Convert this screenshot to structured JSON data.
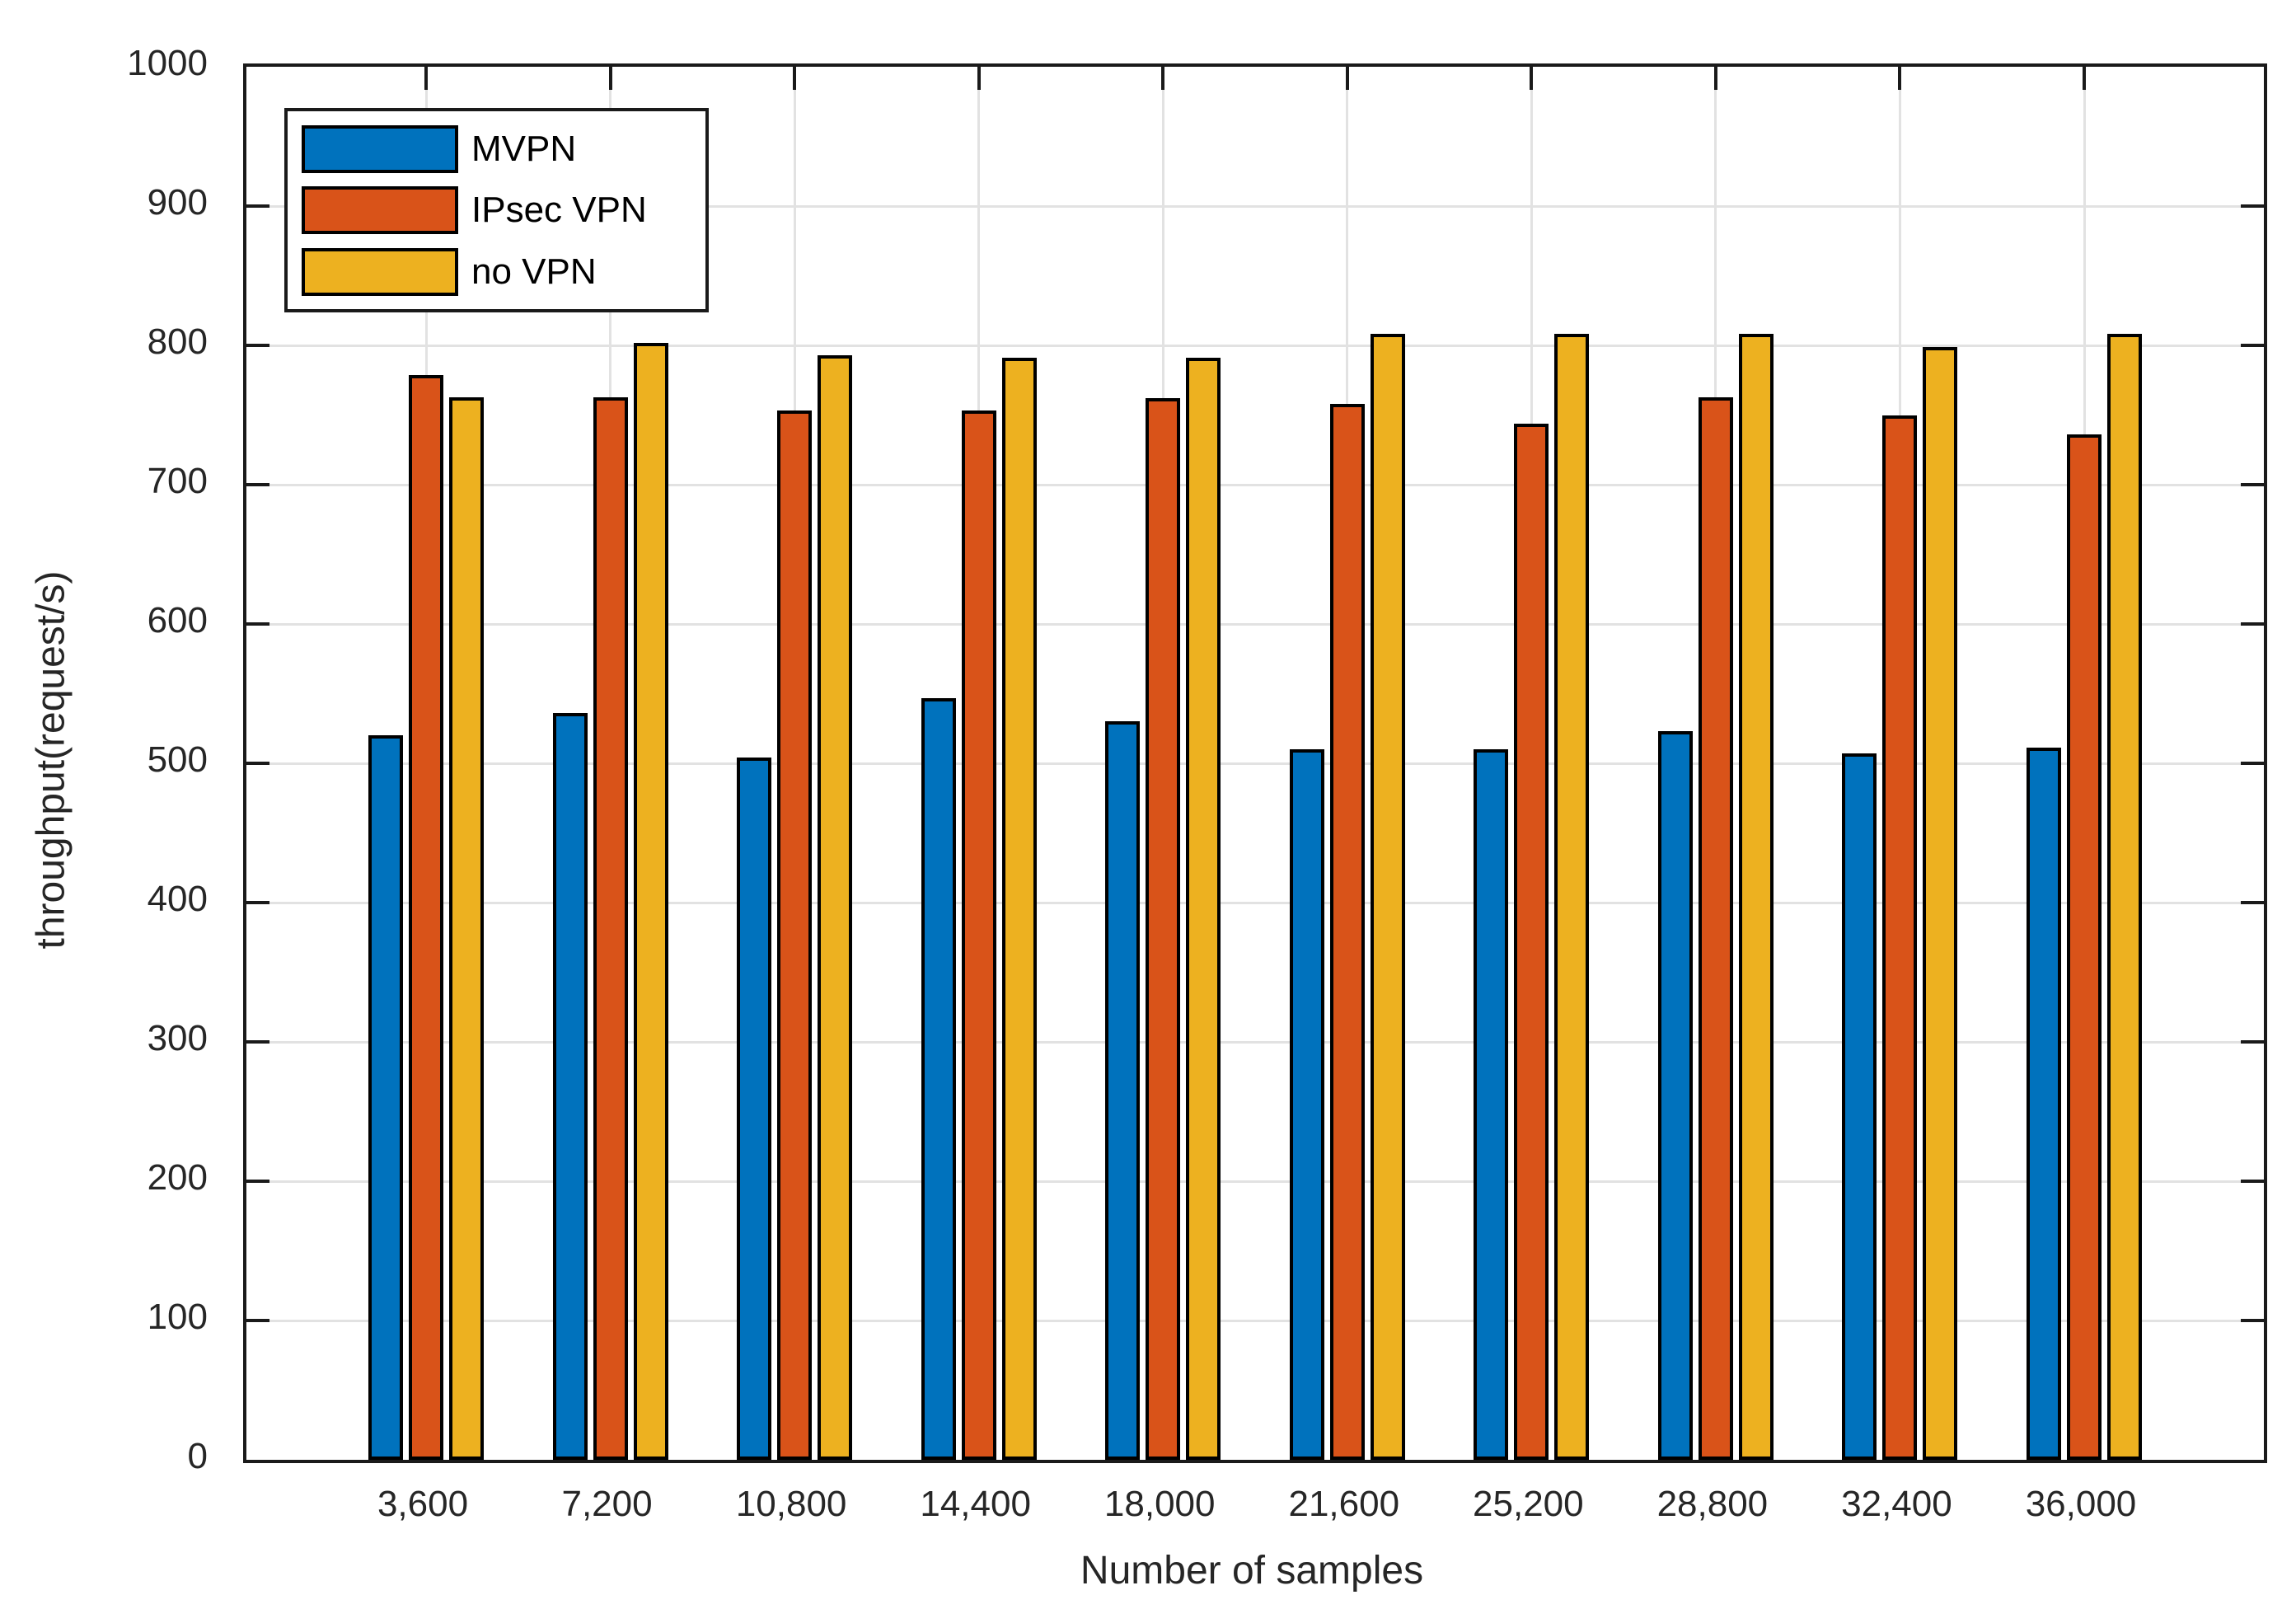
{
  "chart_data": {
    "type": "bar",
    "title": "",
    "xlabel": "Number of samples",
    "ylabel": "throughput(request/s)",
    "categories": [
      "3,600",
      "7,200",
      "10,800",
      "14,400",
      "18,000",
      "21,600",
      "25,200",
      "28,800",
      "32,400",
      "36,000"
    ],
    "series": [
      {
        "name": "MVPN",
        "color": "#0072BD",
        "values": [
          520,
          536,
          504,
          547,
          530,
          510,
          510,
          523,
          507,
          511
        ]
      },
      {
        "name": "IPsec VPN",
        "color": "#D95319",
        "values": [
          779,
          763,
          753,
          753,
          762,
          758,
          744,
          763,
          750,
          736
        ]
      },
      {
        "name": "no VPN",
        "color": "#EDB120",
        "values": [
          763,
          802,
          793,
          791,
          791,
          808,
          808,
          808,
          799,
          808
        ]
      }
    ],
    "ylim": [
      0,
      1000
    ],
    "yticks": [
      0,
      100,
      200,
      300,
      400,
      500,
      600,
      700,
      800,
      900,
      1000
    ],
    "grid": true,
    "legend_position": "top-left",
    "bar_edge_color": "#000000",
    "axis_color": "#1a1a1a",
    "grid_color": "#e2e2e2"
  }
}
